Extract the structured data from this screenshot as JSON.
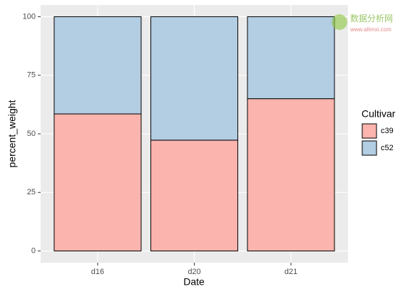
{
  "chart_data": {
    "type": "stacked_bar",
    "x_label": "Date",
    "y_label": "percent_weight",
    "categories": [
      "d16",
      "d20",
      "d21"
    ],
    "series": [
      {
        "name": "c39",
        "color": "#fbb4ae",
        "values": [
          58.5,
          47.3,
          65
        ]
      },
      {
        "name": "c52",
        "color": "#b3cde3",
        "values": [
          41.5,
          52.7,
          35
        ]
      }
    ],
    "ylim": [
      -5,
      105
    ],
    "yticks": [
      0,
      25,
      50,
      75,
      100
    ],
    "grid": true,
    "legend_title": "Cultivar",
    "legend_position": "right",
    "watermark": {
      "name": "数据分析网",
      "url": "www.afenxi.com"
    }
  }
}
